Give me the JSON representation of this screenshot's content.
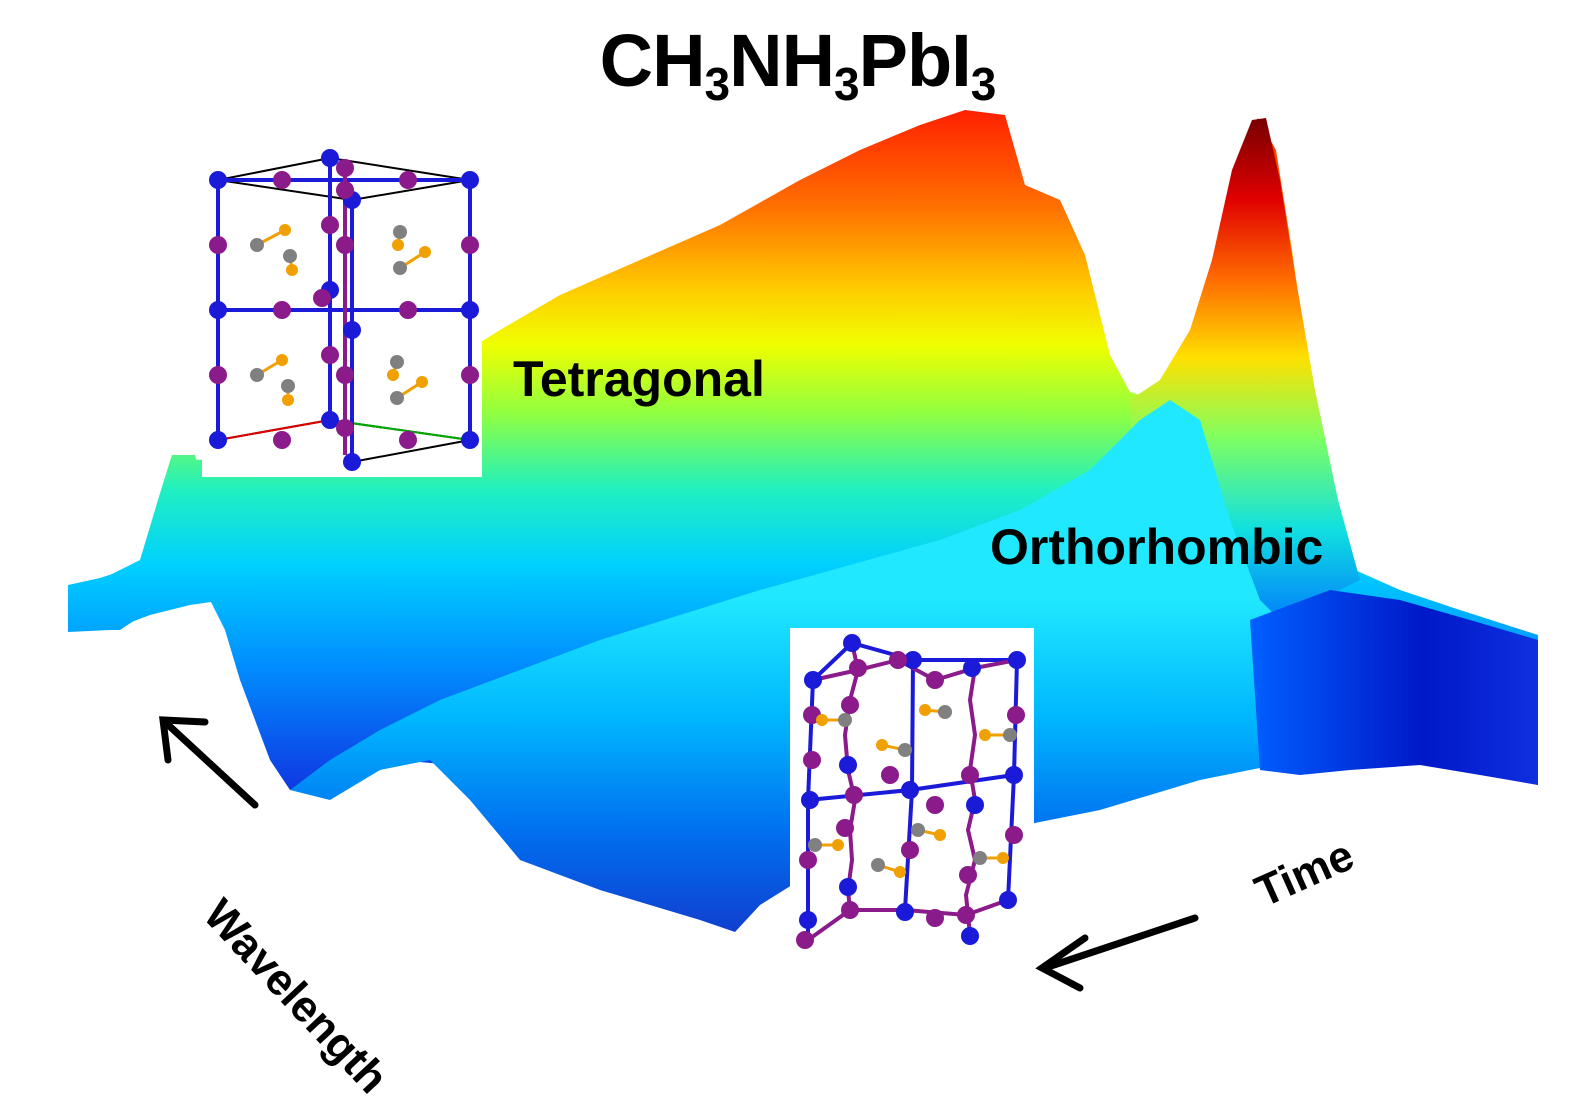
{
  "title": {
    "parts": [
      {
        "text": "CH",
        "sub": "3"
      },
      {
        "text": "NH",
        "sub": "3"
      },
      {
        "text": "PbI",
        "sub": "3"
      }
    ]
  },
  "phases": {
    "tetragonal": "Tetragonal",
    "orthorhombic": "Orthorhombic"
  },
  "axes": {
    "wavelength": "Wavelength",
    "time": "Time"
  },
  "colors": {
    "colormap": [
      "#8b0000",
      "#ff0000",
      "#ff8c00",
      "#ffff00",
      "#00ffff",
      "#0080ff",
      "#0000c8"
    ],
    "pb_atom": "#1a1ad8",
    "i_atom": "#8b1a8b",
    "c_atom": "#808080",
    "n_atom": "#f0a000",
    "arrow": "#000000"
  },
  "icons": [
    "tetragonal-crystal-structure-icon",
    "orthorhombic-crystal-structure-icon",
    "wavelength-arrow-icon",
    "time-arrow-icon"
  ]
}
